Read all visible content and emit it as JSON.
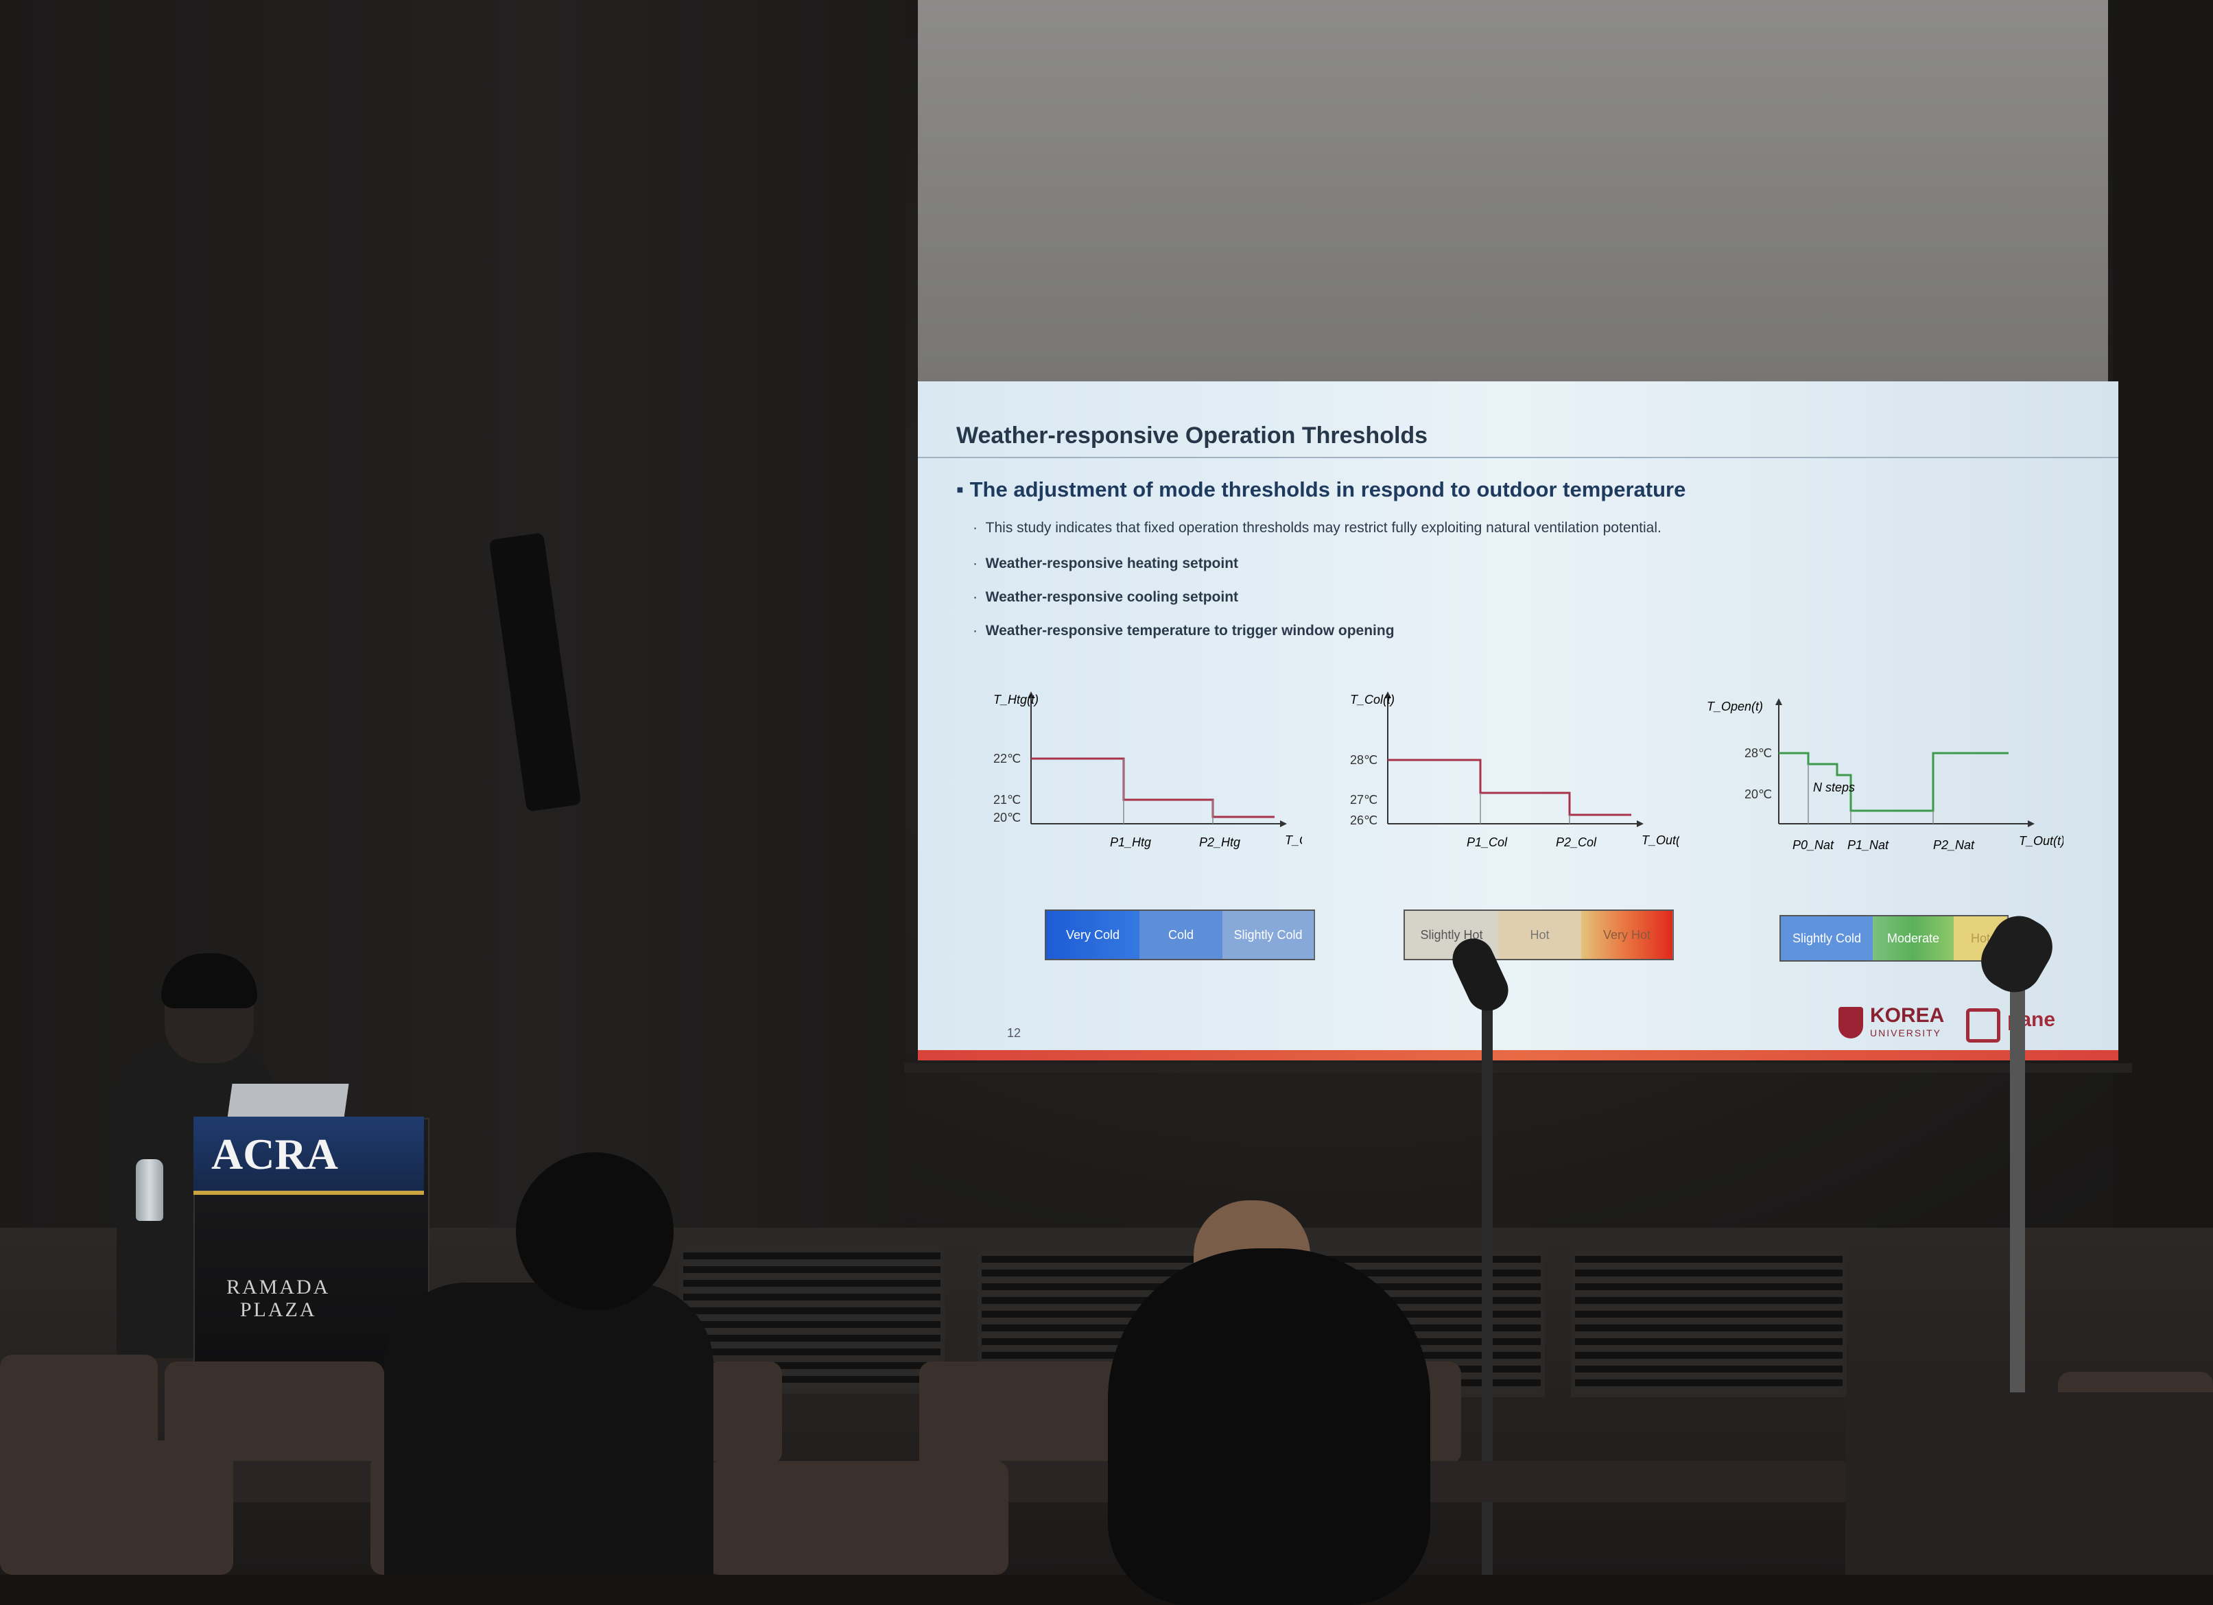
{
  "slide": {
    "title": "Weather-responsive Operation Thresholds",
    "main_bullet": "The adjustment of mode thresholds in respond to outdoor temperature",
    "sub_bullets": [
      "This study indicates that fixed operation thresholds may restrict fully exploiting natural ventilation potential.",
      "Weather-responsive heating setpoint",
      "Weather-responsive cooling setpoint",
      "Weather-responsive temperature to trigger window opening"
    ],
    "page_number": "12",
    "logo_korea": "KOREA",
    "logo_university": "UNIVERSITY",
    "logo_partner": "pane",
    "charts": [
      {
        "ylabel": "T_Htg(t)",
        "xlabel": "T_Out(t)",
        "ticks": [
          "22℃",
          "21℃",
          "20℃"
        ],
        "x_ticks": [
          "P1_Htg",
          "P2_Htg"
        ],
        "bands": [
          "Very Cold",
          "Cold",
          "Slightly Cold"
        ]
      },
      {
        "ylabel": "T_Col(t)",
        "xlabel": "T_Out(t)",
        "ticks": [
          "28℃",
          "27℃",
          "26℃"
        ],
        "x_ticks": [
          "P1_Col",
          "P2_Col"
        ],
        "bands": [
          "Slightly Hot",
          "Hot",
          "Very Hot"
        ]
      },
      {
        "ylabel": "T_Open(t)",
        "xlabel": "T_Out(t)",
        "ticks": [
          "28℃",
          "20℃"
        ],
        "x_ticks": [
          "P0_Nat",
          "P1_Nat",
          "P2_Nat"
        ],
        "annotation": "N steps",
        "bands": [
          "Slightly Cold",
          "Moderate",
          "Hot"
        ]
      }
    ]
  },
  "podium": {
    "sign": "ACRA",
    "brand_line1": "RAMADA",
    "brand_line2": "PLAZA"
  },
  "colors": {
    "heating_line": "#a8334a",
    "cooling_line": "#a8334a",
    "opening_line": "#3c9a4a",
    "accent_bar": "#d8433a"
  }
}
